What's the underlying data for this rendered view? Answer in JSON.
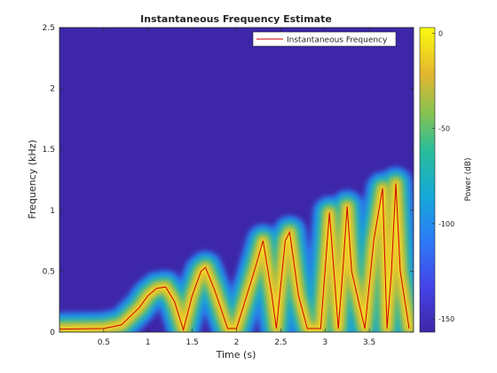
{
  "chart_data": {
    "type": "heatmap",
    "title": "Instantaneous Frequency Estimate",
    "xlabel": "Time (s)",
    "ylabel": "Frequency (kHz)",
    "xlim": [
      0,
      4
    ],
    "ylim": [
      0,
      2.5
    ],
    "xticks": [
      0.5,
      1,
      1.5,
      2,
      2.5,
      3,
      3.5
    ],
    "xtick_labels": [
      "0.5",
      "1",
      "1.5",
      "2",
      "2.5",
      "3",
      "3.5"
    ],
    "yticks": [
      0,
      0.5,
      1,
      1.5,
      2,
      2.5
    ],
    "ytick_labels": [
      "0",
      "0.5",
      "1",
      "1.5",
      "2",
      "2.5"
    ],
    "legend": {
      "position": "top-right",
      "entries": [
        "Instantaneous Frequency"
      ]
    },
    "colorbar": {
      "label": "Power (dB)",
      "range": [
        -157,
        3
      ],
      "ticks": [
        0,
        -50,
        -100,
        -150
      ],
      "tick_labels": [
        "0",
        "-50",
        "-100",
        "-150"
      ],
      "colormap": "parula"
    },
    "series": [
      {
        "name": "Instantaneous Frequency",
        "color": "#d00000",
        "x": [
          0.0,
          0.5,
          0.7,
          0.9,
          1.0,
          1.1,
          1.2,
          1.3,
          1.4,
          1.5,
          1.6,
          1.65,
          1.75,
          1.9,
          2.0,
          2.2,
          2.3,
          2.4,
          2.45,
          2.55,
          2.6,
          2.7,
          2.8,
          2.95,
          3.05,
          3.15,
          3.2,
          3.25,
          3.3,
          3.45,
          3.55,
          3.65,
          3.7,
          3.75,
          3.8,
          3.85,
          3.95
        ],
        "y": [
          0.025,
          0.03,
          0.06,
          0.2,
          0.3,
          0.36,
          0.37,
          0.25,
          0.02,
          0.3,
          0.5,
          0.53,
          0.35,
          0.03,
          0.03,
          0.5,
          0.75,
          0.3,
          0.03,
          0.75,
          0.82,
          0.3,
          0.03,
          0.03,
          0.98,
          0.03,
          0.5,
          1.03,
          0.5,
          0.03,
          0.75,
          1.18,
          0.03,
          0.5,
          1.22,
          0.5,
          0.03
        ]
      }
    ]
  }
}
